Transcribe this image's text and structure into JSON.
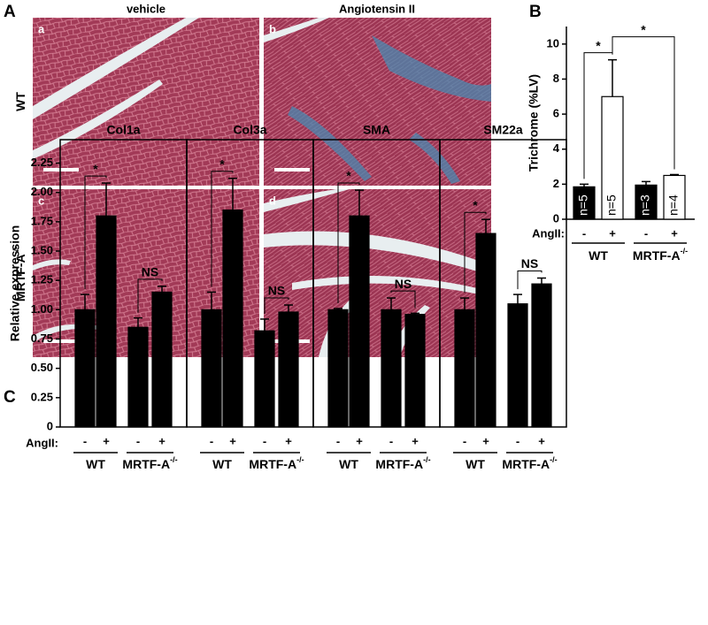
{
  "figure": {
    "panel_letters": [
      "A",
      "B",
      "C"
    ],
    "histology": {
      "column_headers": [
        "vehicle",
        "Angiotensin II"
      ],
      "row_labels": [
        {
          "text": "WT"
        },
        {
          "text": "MRTF-A",
          "sup": "-/-"
        }
      ],
      "tile_letters": [
        "a",
        "b",
        "c",
        "d"
      ]
    }
  },
  "chart_data": [
    {
      "type": "bar",
      "ylabel": "Trichrome (%LV)",
      "x_prefix": "AngII:",
      "categories": [
        "-",
        "+",
        "-",
        "+"
      ],
      "groups": [
        {
          "text": "WT"
        },
        {
          "text": "MRTF-A",
          "sup": "-/-"
        }
      ],
      "values": [
        1.85,
        7.0,
        1.95,
        2.5
      ],
      "errors": [
        0.15,
        2.1,
        0.2,
        0.05
      ],
      "colors": [
        "#000000",
        "#ffffff",
        "#000000",
        "#ffffff"
      ],
      "bar_labels": [
        "n=5",
        "n=5",
        "n=3",
        "n=4"
      ],
      "ylim": [
        0,
        11
      ],
      "yticks": [
        0,
        2,
        4,
        6,
        8,
        10
      ],
      "significance": [
        {
          "pair": [
            0,
            1
          ],
          "label": "*"
        },
        {
          "pair": [
            1,
            3
          ],
          "label": "*"
        }
      ]
    },
    {
      "type": "bar",
      "title": "Col1a",
      "ylabel": "Relative expression",
      "x_prefix": "AngII:",
      "categories": [
        "-",
        "+",
        "-",
        "+"
      ],
      "groups": [
        {
          "text": "WT"
        },
        {
          "text": "MRTF-A",
          "sup": "-/-"
        }
      ],
      "values": [
        1.0,
        1.8,
        0.85,
        1.15
      ],
      "errors": [
        0.13,
        0.28,
        0.08,
        0.05
      ],
      "color": "#000000",
      "ylim": [
        0,
        2.45
      ],
      "yticks": [
        0,
        0.25,
        {
          "value": 0.5,
          "label": "0.50"
        },
        0.75,
        {
          "value": 1,
          "label": "1.00"
        },
        1.25,
        {
          "value": 1.5,
          "label": "1.50"
        },
        1.75,
        {
          "value": 2,
          "label": "2.00"
        },
        2.25
      ],
      "significance": [
        {
          "pair": [
            0,
            1
          ],
          "label": "*"
        },
        {
          "pair": [
            2,
            3
          ],
          "label": "NS"
        }
      ]
    },
    {
      "type": "bar",
      "title": "Col3a",
      "categories": [
        "-",
        "+",
        "-",
        "+"
      ],
      "groups": [
        {
          "text": "WT"
        },
        {
          "text": "MRTF-A",
          "sup": "-/-"
        }
      ],
      "values": [
        1.0,
        1.85,
        0.82,
        0.98
      ],
      "errors": [
        0.15,
        0.27,
        0.1,
        0.06
      ],
      "color": "#000000",
      "ylim": [
        0,
        2.45
      ],
      "significance": [
        {
          "pair": [
            0,
            1
          ],
          "label": "*"
        },
        {
          "pair": [
            2,
            3
          ],
          "label": "NS"
        }
      ]
    },
    {
      "type": "bar",
      "title": "SMA",
      "categories": [
        "-",
        "+",
        "-",
        "+"
      ],
      "groups": [
        {
          "text": "WT"
        },
        {
          "text": "MRTF-A",
          "sup": "-/-"
        }
      ],
      "values": [
        1.0,
        1.8,
        1.0,
        0.96
      ],
      "errors": [
        0.01,
        0.22,
        0.1,
        0.01
      ],
      "color": "#000000",
      "ylim": [
        0,
        2.45
      ],
      "significance": [
        {
          "pair": [
            0,
            1
          ],
          "label": "*"
        },
        {
          "pair": [
            2,
            3
          ],
          "label": "NS"
        }
      ]
    },
    {
      "type": "bar",
      "title": "SM22a",
      "categories": [
        "-",
        "+",
        "-",
        "+"
      ],
      "groups": [
        {
          "text": "WT"
        },
        {
          "text": "MRTF-A",
          "sup": "-/-"
        }
      ],
      "values": [
        1.0,
        1.65,
        1.05,
        1.22
      ],
      "errors": [
        0.1,
        0.12,
        0.08,
        0.05
      ],
      "color": "#000000",
      "ylim": [
        0,
        2.45
      ],
      "significance": [
        {
          "pair": [
            0,
            1
          ],
          "label": "*"
        },
        {
          "pair": [
            2,
            3
          ],
          "label": "NS"
        }
      ]
    }
  ]
}
